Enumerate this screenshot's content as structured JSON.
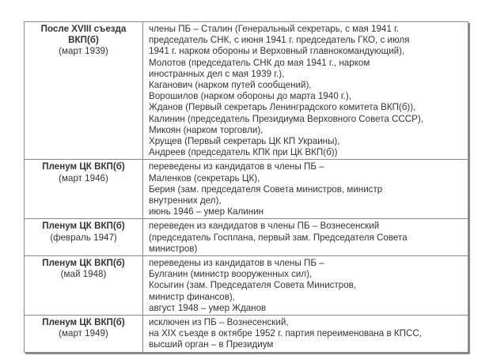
{
  "rows": [
    {
      "title": [
        "После XVIII съезда",
        "ВКП(б)"
      ],
      "date": "(март 1939)",
      "lines": [
        "члены ПБ – Сталин (Генеральный секретарь, с мая 1941 г.",
        "председатель СНК, с июня 1941 г. председатель ГКО, с июля",
        "1941 г. нарком обороны и Верховный главнокомандующий),",
        "Молотов (председатель СНК до мая 1941 г., нарком",
        "иностранных дел с мая 1939 г.),",
        "Каганович (нарком путей сообщений),",
        "Ворошилов (нарком обороны до марта 1940 г.),",
        "Жданов (Первый секретарь Ленинградского комитета ВКП(б)),",
        "Калинин (председатель Президиума Верховного Совета СССР),",
        "Микоян (нарком торговли),",
        "Хрущев (Первый секретарь ЦК КП Украины),",
        "Андреев (председатель КПК при ЦК ВКП(б))"
      ]
    },
    {
      "title": [
        "Пленум ЦК ВКП(б)"
      ],
      "date": "(март 1946)",
      "lines": [
        "переведены из кандидатов в члены ПБ –",
        "Маленков (секретарь ЦК),",
        "Берия (зам. председателя Совета министров, министр",
        "внутренних дел),",
        "июнь 1946 – умер Калинин"
      ]
    },
    {
      "title": [
        "Пленум ЦК ВКП(б)"
      ],
      "date": "(февраль 1947)",
      "lines": [
        "переведен из кандидатов в члены ПБ – Вознесенский",
        "(председатель Госплана, первый зам. Председателя Совета",
        "министров)"
      ]
    },
    {
      "title": [
        "Пленум ЦК ВКП(б)"
      ],
      "date": "(май 1948)",
      "lines": [
        "переведены из кандидатов в члены ПБ –",
        "Булганин (министр вооруженных сил),",
        "Косыгин (зам. Председателя Совета Министров,",
        "министр финансов),",
        "август 1948 – умер Жданов"
      ]
    },
    {
      "title": [
        "Пленум ЦК ВКП(б)"
      ],
      "date": "(март 1949)",
      "lines": [
        "исключен из ПБ – Вознесенский,",
        "на XIX съезде в октябре 1952 г. партия переименована в КПСС,",
        "высший орган – в Президиум"
      ]
    }
  ]
}
